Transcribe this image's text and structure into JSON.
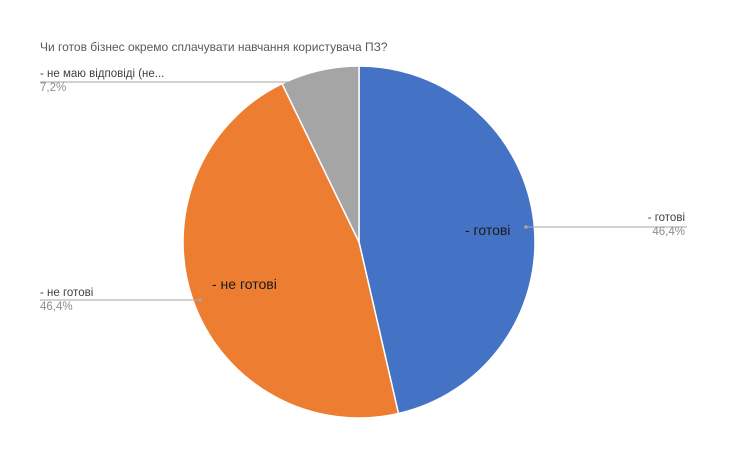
{
  "chart_data": {
    "type": "pie",
    "title": "Чи готов бізнес окремо сплачувати навчання користувача ПЗ?",
    "slices": [
      {
        "name": "- готові",
        "value": 46.4,
        "value_label": "46,4%",
        "inner_label": "- готові",
        "color": "#4472C4"
      },
      {
        "name": "- не готові",
        "value": 46.4,
        "value_label": "46,4%",
        "inner_label": "- не готові",
        "color": "#ED7D31"
      },
      {
        "name": "- не маю відповіді (не...",
        "value": 7.2,
        "value_label": "7,2%",
        "inner_label": "",
        "color": "#A5A5A5"
      }
    ],
    "start_angle_deg": 0,
    "direction": "clockwise",
    "legend": "none"
  }
}
